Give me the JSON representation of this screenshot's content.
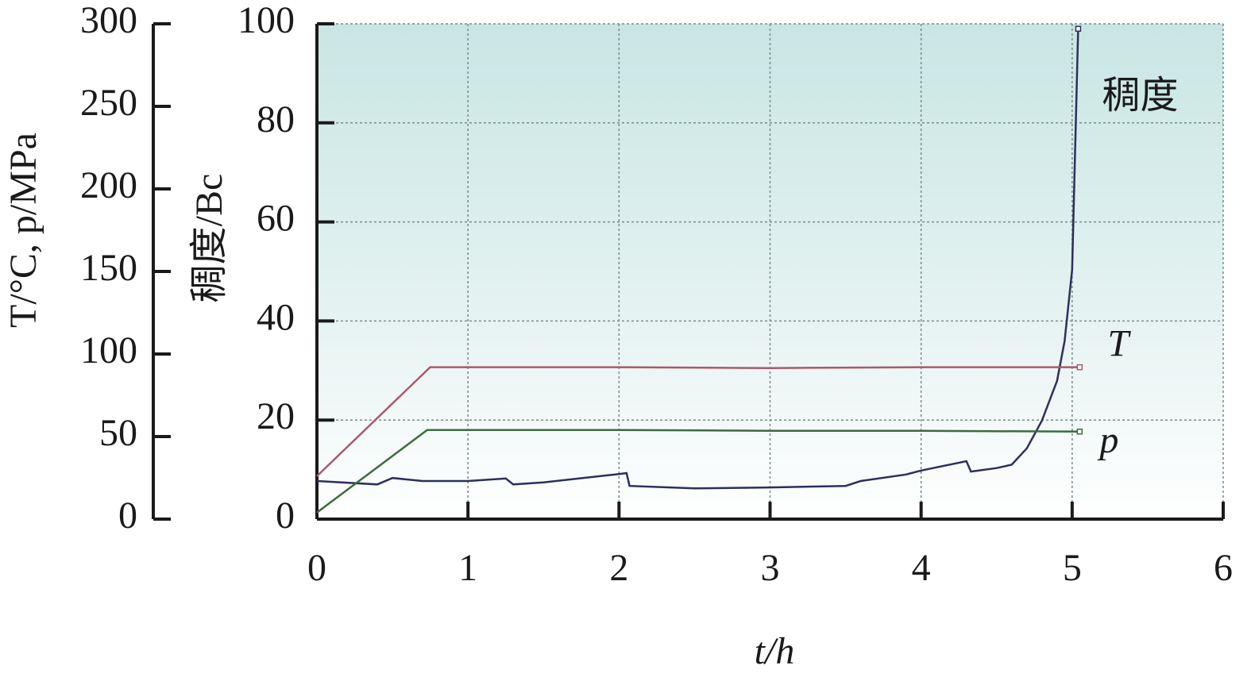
{
  "chart_data": {
    "type": "line",
    "xlabel": "t/h",
    "ylabel": "稠度/Bc",
    "y2label": "T/°C, p/MPa",
    "xlim": [
      0,
      6
    ],
    "xticks": [
      0,
      1,
      2,
      3,
      4,
      5,
      6
    ],
    "ylim": [
      0,
      100
    ],
    "yticks": [
      0,
      20,
      40,
      60,
      80,
      100
    ],
    "y2lim": [
      0,
      300
    ],
    "y2ticks": [
      0,
      50,
      100,
      150,
      200,
      250,
      300
    ],
    "grid": true,
    "series": [
      {
        "name": "稠度",
        "color": "#2d2f5c",
        "x": [
          0,
          0.4,
          0.5,
          0.7,
          1.0,
          1.25,
          1.3,
          1.5,
          2.0,
          2.05,
          2.07,
          2.5,
          3.0,
          3.5,
          3.6,
          3.9,
          4.0,
          4.3,
          4.33,
          4.5,
          4.6,
          4.7,
          4.8,
          4.9,
          4.95,
          5.0,
          5.04
        ],
        "values": [
          7.7,
          7,
          8.3,
          7.7,
          7.7,
          8.2,
          7,
          7.4,
          9.1,
          9.3,
          6.7,
          6.2,
          6.4,
          6.7,
          7.7,
          9,
          9.8,
          11.7,
          9.6,
          10.3,
          11,
          14.3,
          19.9,
          27.9,
          35.9,
          50.3,
          99
        ]
      },
      {
        "name": "T",
        "color": "#a85a6a",
        "axis": "y2",
        "x": [
          0,
          0.75,
          2,
          3,
          4,
          5.05
        ],
        "values": [
          26,
          92,
          92,
          91.5,
          92,
          92
        ]
      },
      {
        "name": "p",
        "color": "#3d6b3d",
        "axis": "y2",
        "x": [
          0,
          0.73,
          2,
          3,
          4,
          5.05
        ],
        "values": [
          4,
          54,
          54,
          53.5,
          53.5,
          53
        ]
      }
    ]
  }
}
